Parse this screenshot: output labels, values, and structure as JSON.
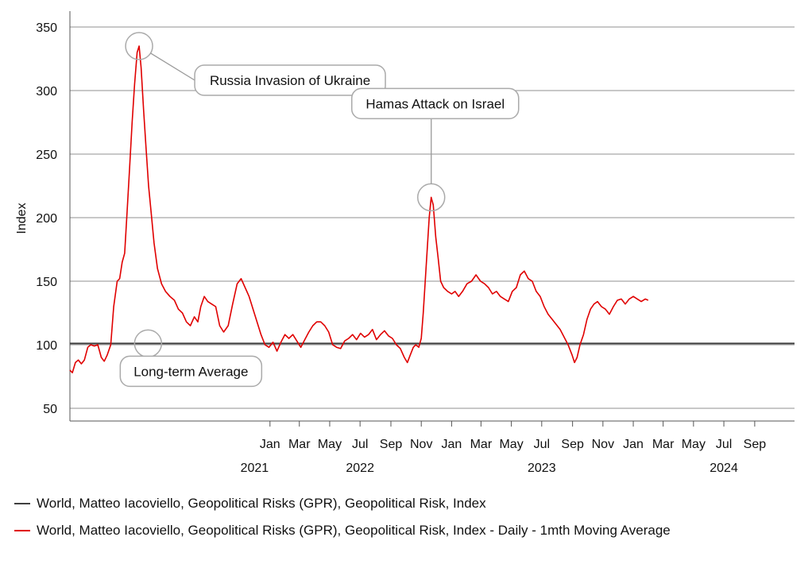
{
  "chart_data": {
    "type": "line",
    "ylabel": "Index",
    "ylim": [
      40,
      360
    ],
    "yticks": [
      50,
      100,
      150,
      200,
      250,
      300,
      350
    ],
    "x_range": [
      "2020-11-25",
      "2024-11-20"
    ],
    "month_ticks": [
      {
        "date": "2022-01-01",
        "label": "Jan"
      },
      {
        "date": "2022-03-01",
        "label": "Mar"
      },
      {
        "date": "2022-05-01",
        "label": "May"
      },
      {
        "date": "2022-07-01",
        "label": "Jul"
      },
      {
        "date": "2022-09-01",
        "label": "Sep"
      },
      {
        "date": "2022-11-01",
        "label": "Nov"
      },
      {
        "date": "2023-01-01",
        "label": "Jan"
      },
      {
        "date": "2023-03-01",
        "label": "Mar"
      },
      {
        "date": "2023-05-01",
        "label": "May"
      },
      {
        "date": "2023-07-01",
        "label": "Jul"
      },
      {
        "date": "2023-09-01",
        "label": "Sep"
      },
      {
        "date": "2023-11-01",
        "label": "Nov"
      },
      {
        "date": "2024-01-01",
        "label": "Jan"
      },
      {
        "date": "2024-03-01",
        "label": "Mar"
      },
      {
        "date": "2024-05-01",
        "label": "May"
      },
      {
        "date": "2024-07-01",
        "label": "Jul"
      },
      {
        "date": "2024-09-01",
        "label": "Sep"
      }
    ],
    "year_labels": [
      {
        "date": "2021-12-01",
        "label": "2021"
      },
      {
        "date": "2022-07-01",
        "label": "2022"
      },
      {
        "date": "2023-07-01",
        "label": "2023"
      },
      {
        "date": "2024-07-01",
        "label": "2024"
      }
    ],
    "series": [
      {
        "name": "World, Matteo Iacoviello, Geopolitical Risks (GPR), Geopolitical Risk, Index",
        "color": "#404040",
        "points": [
          [
            "2020-11-25",
            101
          ],
          [
            "2024-11-20",
            101
          ]
        ]
      },
      {
        "name": "World, Matteo Iacoviello, Geopolitical Risks (GPR), Geopolitical Risk, Index - Daily - 1mth Moving Average",
        "color": "#e00000",
        "points": [
          [
            "2020-11-25",
            80
          ],
          [
            "2020-11-30",
            78
          ],
          [
            "2020-12-06",
            86
          ],
          [
            "2020-12-12",
            88
          ],
          [
            "2020-12-18",
            85
          ],
          [
            "2020-12-24",
            88
          ],
          [
            "2020-12-31",
            98
          ],
          [
            "2021-01-06",
            100
          ],
          [
            "2021-01-13",
            99
          ],
          [
            "2021-01-20",
            100
          ],
          [
            "2021-01-27",
            90
          ],
          [
            "2021-02-02",
            87
          ],
          [
            "2021-02-08",
            92
          ],
          [
            "2021-02-15",
            100
          ],
          [
            "2021-02-21",
            130
          ],
          [
            "2021-02-28",
            150
          ],
          [
            "2021-03-05",
            152
          ],
          [
            "2021-03-10",
            165
          ],
          [
            "2021-03-15",
            172
          ],
          [
            "2021-03-20",
            205
          ],
          [
            "2021-03-25",
            240
          ],
          [
            "2021-03-30",
            275
          ],
          [
            "2021-04-04",
            305
          ],
          [
            "2021-04-09",
            330
          ],
          [
            "2021-04-13",
            335
          ],
          [
            "2021-04-17",
            318
          ],
          [
            "2021-04-22",
            285
          ],
          [
            "2021-04-27",
            255
          ],
          [
            "2021-05-02",
            225
          ],
          [
            "2021-05-07",
            205
          ],
          [
            "2021-05-13",
            180
          ],
          [
            "2021-05-20",
            160
          ],
          [
            "2021-05-28",
            148
          ],
          [
            "2021-06-05",
            142
          ],
          [
            "2021-06-14",
            138
          ],
          [
            "2021-06-23",
            135
          ],
          [
            "2021-07-01",
            128
          ],
          [
            "2021-07-09",
            125
          ],
          [
            "2021-07-17",
            118
          ],
          [
            "2021-07-25",
            115
          ],
          [
            "2021-08-02",
            122
          ],
          [
            "2021-08-09",
            118
          ],
          [
            "2021-08-15",
            130
          ],
          [
            "2021-08-22",
            138
          ],
          [
            "2021-08-29",
            134
          ],
          [
            "2021-09-06",
            132
          ],
          [
            "2021-09-14",
            130
          ],
          [
            "2021-09-22",
            115
          ],
          [
            "2021-09-30",
            110
          ],
          [
            "2021-10-09",
            115
          ],
          [
            "2021-10-18",
            132
          ],
          [
            "2021-10-27",
            148
          ],
          [
            "2021-11-04",
            152
          ],
          [
            "2021-11-12",
            145
          ],
          [
            "2021-11-20",
            138
          ],
          [
            "2021-11-28",
            128
          ],
          [
            "2021-12-06",
            118
          ],
          [
            "2021-12-14",
            108
          ],
          [
            "2021-12-22",
            100
          ],
          [
            "2021-12-30",
            98
          ],
          [
            "2022-01-07",
            102
          ],
          [
            "2022-01-15",
            95
          ],
          [
            "2022-01-23",
            102
          ],
          [
            "2022-01-31",
            108
          ],
          [
            "2022-02-08",
            105
          ],
          [
            "2022-02-16",
            108
          ],
          [
            "2022-02-24",
            103
          ],
          [
            "2022-03-04",
            98
          ],
          [
            "2022-03-12",
            104
          ],
          [
            "2022-03-20",
            110
          ],
          [
            "2022-03-28",
            115
          ],
          [
            "2022-04-05",
            118
          ],
          [
            "2022-04-13",
            118
          ],
          [
            "2022-04-21",
            115
          ],
          [
            "2022-04-29",
            110
          ],
          [
            "2022-05-07",
            100
          ],
          [
            "2022-05-15",
            98
          ],
          [
            "2022-05-23",
            97
          ],
          [
            "2022-05-31",
            103
          ],
          [
            "2022-06-08",
            105
          ],
          [
            "2022-06-16",
            108
          ],
          [
            "2022-06-24",
            104
          ],
          [
            "2022-07-02",
            109
          ],
          [
            "2022-07-10",
            106
          ],
          [
            "2022-07-18",
            108
          ],
          [
            "2022-07-26",
            112
          ],
          [
            "2022-08-03",
            104
          ],
          [
            "2022-08-11",
            108
          ],
          [
            "2022-08-19",
            111
          ],
          [
            "2022-08-27",
            107
          ],
          [
            "2022-09-04",
            105
          ],
          [
            "2022-09-12",
            100
          ],
          [
            "2022-09-20",
            97
          ],
          [
            "2022-09-28",
            90
          ],
          [
            "2022-10-04",
            86
          ],
          [
            "2022-10-10",
            92
          ],
          [
            "2022-10-16",
            98
          ],
          [
            "2022-10-21",
            100
          ],
          [
            "2022-10-27",
            98
          ],
          [
            "2022-11-01",
            105
          ],
          [
            "2022-11-05",
            125
          ],
          [
            "2022-11-09",
            150
          ],
          [
            "2022-11-13",
            175
          ],
          [
            "2022-11-17",
            200
          ],
          [
            "2022-11-21",
            216
          ],
          [
            "2022-11-25",
            210
          ],
          [
            "2022-11-30",
            185
          ],
          [
            "2022-12-05",
            168
          ],
          [
            "2022-12-10",
            150
          ],
          [
            "2022-12-16",
            145
          ],
          [
            "2022-12-24",
            142
          ],
          [
            "2023-01-01",
            140
          ],
          [
            "2023-01-08",
            142
          ],
          [
            "2023-01-15",
            138
          ],
          [
            "2023-01-23",
            142
          ],
          [
            "2023-02-01",
            148
          ],
          [
            "2023-02-10",
            150
          ],
          [
            "2023-02-19",
            155
          ],
          [
            "2023-02-28",
            150
          ],
          [
            "2023-03-08",
            148
          ],
          [
            "2023-03-16",
            145
          ],
          [
            "2023-03-24",
            140
          ],
          [
            "2023-04-01",
            142
          ],
          [
            "2023-04-09",
            138
          ],
          [
            "2023-04-17",
            136
          ],
          [
            "2023-04-25",
            134
          ],
          [
            "2023-05-03",
            142
          ],
          [
            "2023-05-11",
            145
          ],
          [
            "2023-05-19",
            155
          ],
          [
            "2023-05-27",
            158
          ],
          [
            "2023-06-04",
            152
          ],
          [
            "2023-06-12",
            150
          ],
          [
            "2023-06-20",
            142
          ],
          [
            "2023-06-28",
            138
          ],
          [
            "2023-07-06",
            130
          ],
          [
            "2023-07-14",
            124
          ],
          [
            "2023-07-22",
            120
          ],
          [
            "2023-07-30",
            116
          ],
          [
            "2023-08-07",
            112
          ],
          [
            "2023-08-15",
            106
          ],
          [
            "2023-08-23",
            100
          ],
          [
            "2023-08-31",
            92
          ],
          [
            "2023-09-05",
            86
          ],
          [
            "2023-09-10",
            90
          ],
          [
            "2023-09-16",
            100
          ],
          [
            "2023-09-23",
            108
          ],
          [
            "2023-09-30",
            120
          ],
          [
            "2023-10-07",
            128
          ],
          [
            "2023-10-14",
            132
          ],
          [
            "2023-10-21",
            134
          ],
          [
            "2023-10-29",
            130
          ],
          [
            "2023-11-06",
            128
          ],
          [
            "2023-11-14",
            124
          ],
          [
            "2023-11-22",
            130
          ],
          [
            "2023-11-30",
            135
          ],
          [
            "2023-12-08",
            136
          ],
          [
            "2023-12-16",
            132
          ],
          [
            "2023-12-24",
            136
          ],
          [
            "2024-01-01",
            138
          ],
          [
            "2024-01-09",
            136
          ],
          [
            "2024-01-17",
            134
          ],
          [
            "2024-01-25",
            136
          ],
          [
            "2024-01-31",
            135
          ]
        ]
      }
    ],
    "annotations": [
      {
        "text": "Russia Invasion of Ukraine",
        "date": "2021-04-13",
        "value": 335
      },
      {
        "text": "Hamas Attack on Israel",
        "date": "2022-11-21",
        "value": 216
      },
      {
        "text": "Long-term Average",
        "date": "2021-05-01",
        "value": 101
      }
    ]
  },
  "legend": [
    {
      "label": "World, Matteo Iacoviello, Geopolitical Risks (GPR), Geopolitical Risk, Index",
      "color": "#404040"
    },
    {
      "label": "World, Matteo Iacoviello, Geopolitical Risks (GPR), Geopolitical Risk, Index - Daily - 1mth Moving Average",
      "color": "#e00000"
    }
  ]
}
